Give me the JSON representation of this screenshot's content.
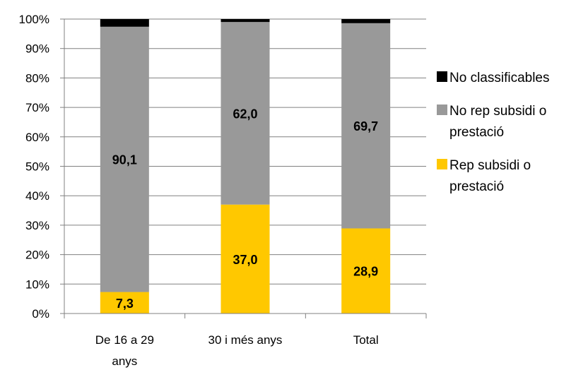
{
  "chart_data": {
    "type": "bar",
    "stacked": true,
    "percent": true,
    "categories": [
      "De 16 a 29 anys",
      "30 i més anys",
      "Total"
    ],
    "series": [
      {
        "name": "Rep subsidi o prestació",
        "color": "#FFC800",
        "values": [
          7.3,
          37.0,
          28.9
        ],
        "labels": [
          "7,3",
          "37,0",
          "28,9"
        ]
      },
      {
        "name": "No rep subsidi o prestació",
        "color": "#999999",
        "values": [
          90.1,
          62.0,
          69.7
        ],
        "labels": [
          "90,1",
          "62,0",
          "69,7"
        ]
      },
      {
        "name": "No classificables",
        "color": "#000000",
        "values": [
          2.6,
          1.0,
          1.4
        ],
        "labels": [
          "",
          "",
          ""
        ]
      }
    ],
    "yticks": [
      "0%",
      "10%",
      "20%",
      "30%",
      "40%",
      "50%",
      "60%",
      "70%",
      "80%",
      "90%",
      "100%"
    ],
    "ylim": [
      0,
      100
    ],
    "grid": true,
    "legend": {
      "position": "right",
      "order": [
        "No classificables",
        "No rep subsidi o prestació",
        "Rep subsidi o prestació"
      ]
    }
  }
}
